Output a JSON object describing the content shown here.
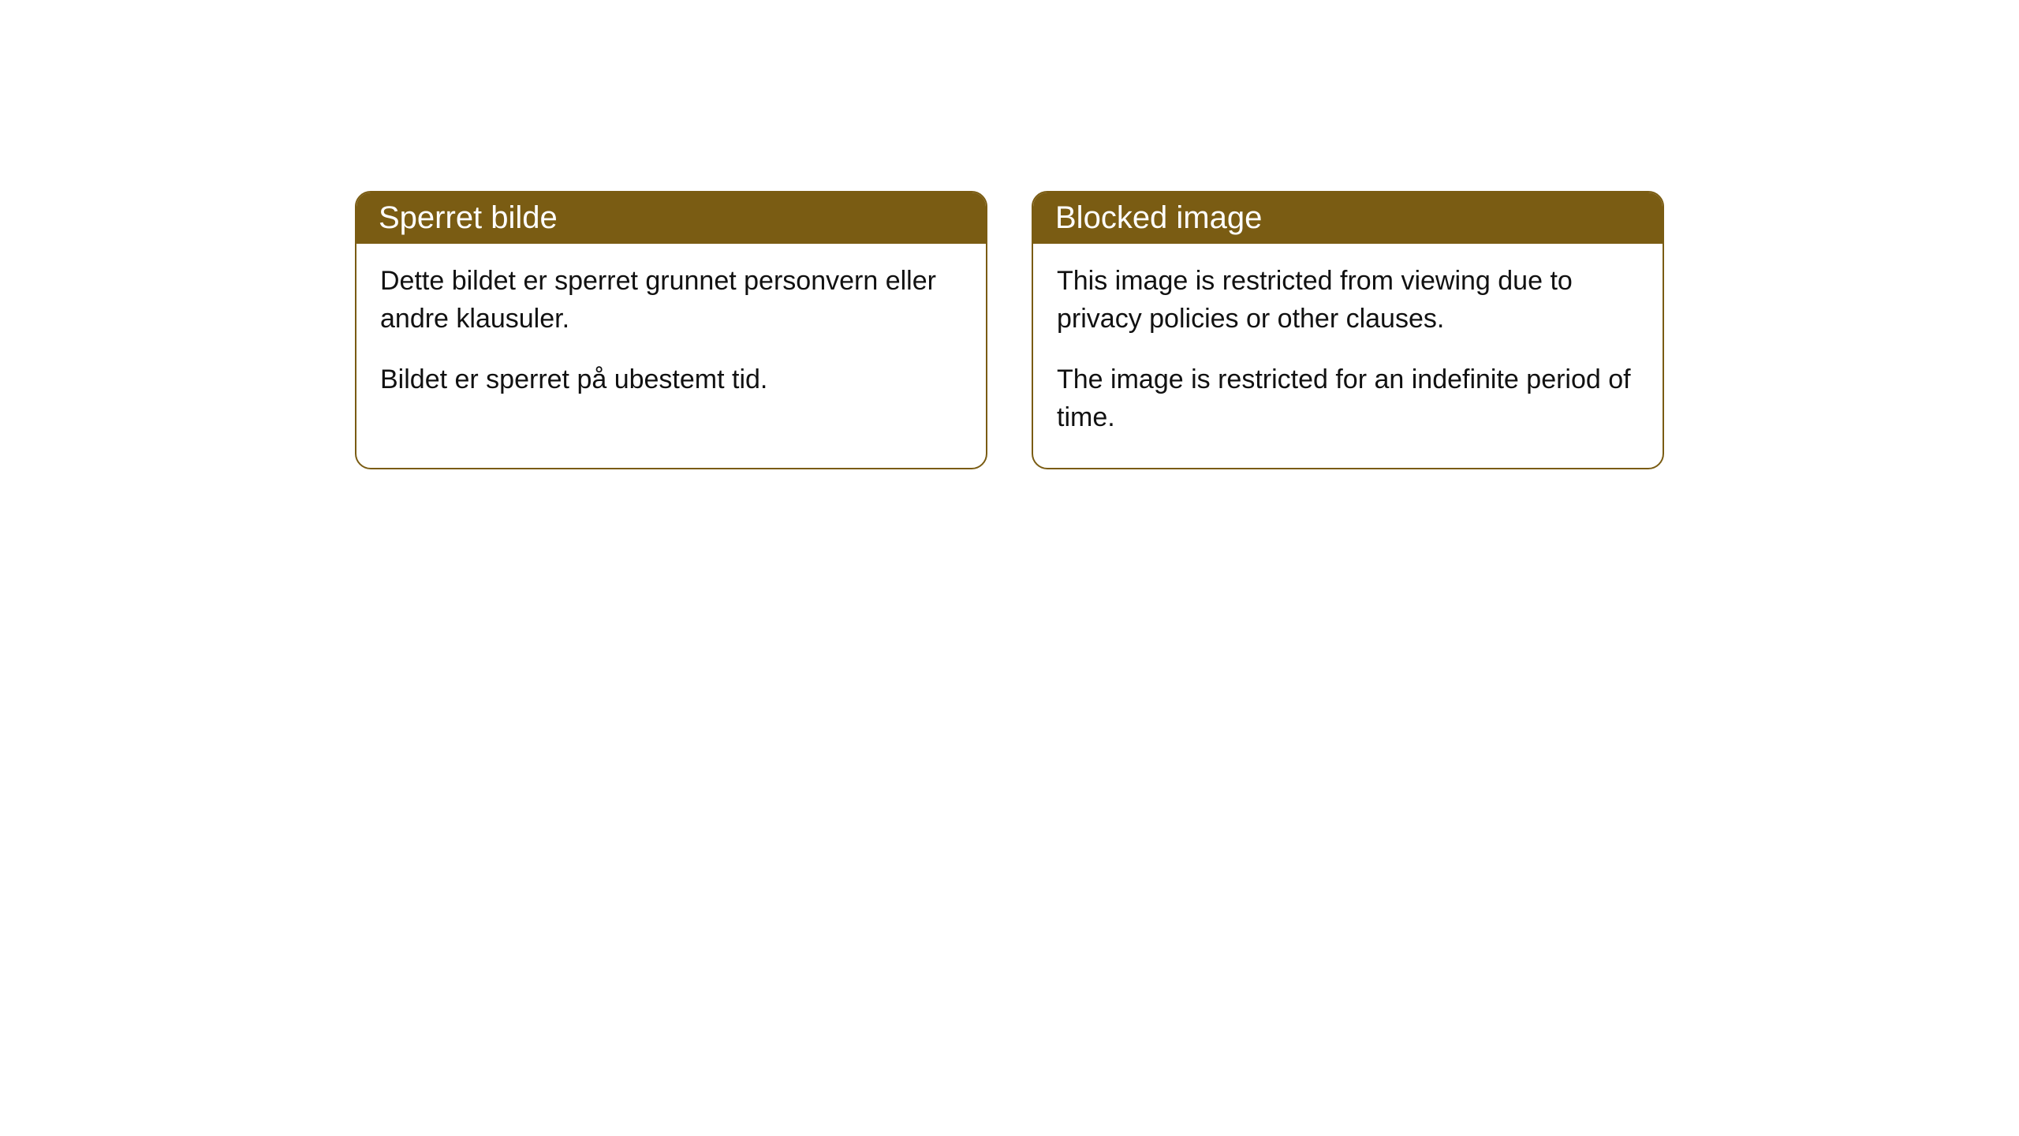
{
  "cards": [
    {
      "title": "Sperret bilde",
      "paragraph1": "Dette bildet er sperret grunnet personvern eller andre klausuler.",
      "paragraph2": "Bildet er sperret på ubestemt tid."
    },
    {
      "title": "Blocked image",
      "paragraph1": "This image is restricted from viewing due to privacy policies or other clauses.",
      "paragraph2": "The image is restricted for an indefinite period of time."
    }
  ],
  "styling": {
    "header_background": "#7a5c13",
    "header_text_color": "#ffffff",
    "border_color": "#7a5c13",
    "body_text_color": "#111111",
    "background_color": "#ffffff",
    "border_radius": 20,
    "header_fontsize": 40,
    "body_fontsize": 34
  }
}
